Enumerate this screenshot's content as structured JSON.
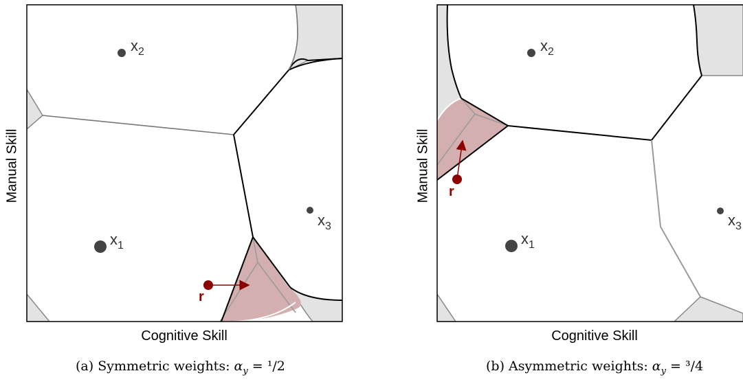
{
  "panels": [
    {
      "id": "a",
      "caption_prefix": "(a) Symmetric weights:  ",
      "caption_alpha": "α",
      "caption_sub": "y",
      "caption_value": " = ¹/2",
      "xlabel": "Cognitive Skill",
      "ylabel": "Manual Skill",
      "points": [
        {
          "name": "x",
          "sub": "1"
        },
        {
          "name": "x",
          "sub": "2"
        },
        {
          "name": "x",
          "sub": "3"
        }
      ],
      "r_label": "r"
    },
    {
      "id": "b",
      "caption_prefix": "(b) Asymmetric weights:  ",
      "caption_alpha": "α",
      "caption_sub": "y",
      "caption_value": " = ³/4",
      "xlabel": "Cognitive Skill",
      "ylabel": "Manual Skill",
      "points": [
        {
          "name": "x",
          "sub": "1"
        },
        {
          "name": "x",
          "sub": "2"
        },
        {
          "name": "x",
          "sub": "3"
        }
      ],
      "r_label": "r"
    }
  ],
  "colors": {
    "shade_gray": "#e3e3e3",
    "shade_red": "#d4afaf",
    "red": "#8b0000",
    "point": "#444444",
    "line": "#000000",
    "gray_line": "#9a9a9a"
  }
}
